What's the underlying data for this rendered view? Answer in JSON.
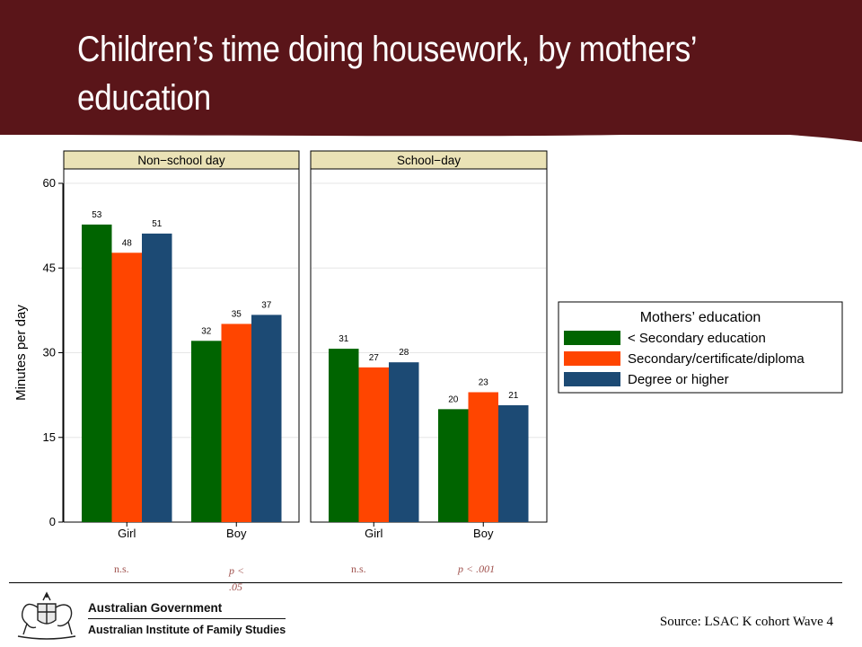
{
  "slide": {
    "title": "Children’s time doing housework, by mothers’ education",
    "source": "Source: LSAC K cohort Wave 4",
    "org_line1": "Australian Government",
    "org_line2": "Australian Institute of Family Studies",
    "colors": {
      "header": "#5a1519",
      "note": "#a0524e"
    }
  },
  "notes": [
    {
      "text": "n.s.",
      "italic": false
    },
    {
      "text": "p < .05",
      "italic": true
    },
    {
      "text": "n.s.",
      "italic": false
    },
    {
      "text": "p < .001",
      "italic": true
    }
  ],
  "chart_data": {
    "type": "bar",
    "ylabel": "Minutes per day",
    "ylim": [
      0,
      60
    ],
    "yticks": [
      0,
      15,
      30,
      45,
      60
    ],
    "grid": true,
    "legend_title": "Mothers’ education",
    "legend_position": "right",
    "series": [
      {
        "name": "< Secondary education",
        "color": "#006400"
      },
      {
        "name": "Secondary/certificate/diploma",
        "color": "#ff4500"
      },
      {
        "name": "Degree or higher",
        "color": "#1c4a74"
      }
    ],
    "panels": [
      {
        "title": "Non−school day",
        "categories": [
          "Girl",
          "Boy"
        ],
        "values": [
          [
            53,
            48,
            51
          ],
          [
            32,
            35,
            37
          ]
        ],
        "heights": [
          [
            52.7,
            47.7,
            51.1
          ],
          [
            32.1,
            35.1,
            36.7
          ]
        ]
      },
      {
        "title": "School−day",
        "categories": [
          "Girl",
          "Boy"
        ],
        "values": [
          [
            31,
            27,
            28
          ],
          [
            20,
            23,
            21
          ]
        ],
        "heights": [
          [
            30.7,
            27.4,
            28.3
          ],
          [
            20.0,
            23.0,
            20.7
          ]
        ]
      }
    ]
  }
}
